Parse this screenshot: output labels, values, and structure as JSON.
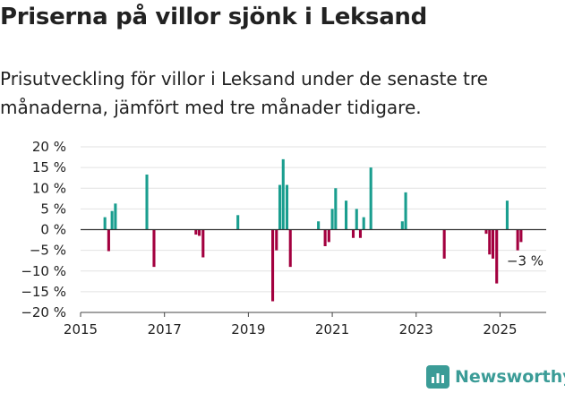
{
  "header": {
    "title": "Priserna på villor sjönk i Leksand",
    "subtitle": "Prisutveckling för villor i Leksand under de senaste tre månaderna, jämfört med tre månader tidigare."
  },
  "colors": {
    "positive": "#1a9e8f",
    "negative": "#a3003f",
    "zero_line": "#333333",
    "grid": "#e2e2e2",
    "brand": "#3b9c97"
  },
  "brand": {
    "name": "Newsworthy",
    "icon": "bar-chart-logo-icon"
  },
  "chart_data": {
    "type": "bar",
    "title": "",
    "xlabel": "",
    "ylabel": "",
    "xlim": [
      2015.0,
      2026.1
    ],
    "ylim": [
      -20,
      20
    ],
    "x_ticks": [
      {
        "value": 2015,
        "label": "2015"
      },
      {
        "value": 2017,
        "label": "2017"
      },
      {
        "value": 2019,
        "label": "2019"
      },
      {
        "value": 2021,
        "label": "2021"
      },
      {
        "value": 2023,
        "label": "2023"
      },
      {
        "value": 2025,
        "label": "2025"
      }
    ],
    "y_ticks": [
      {
        "value": 20,
        "label": "20 %"
      },
      {
        "value": 15,
        "label": "15 %"
      },
      {
        "value": 10,
        "label": "10 %"
      },
      {
        "value": 5,
        "label": "5 %"
      },
      {
        "value": 0,
        "label": "0 %"
      },
      {
        "value": -5,
        "label": "−5 %"
      },
      {
        "value": -10,
        "label": "−10 %"
      },
      {
        "value": -15,
        "label": "−15 %"
      },
      {
        "value": -20,
        "label": "−20 %"
      }
    ],
    "grid": true,
    "bar_width_years": 0.066,
    "points": [
      {
        "x": 2015.58,
        "y": 3.0
      },
      {
        "x": 2015.67,
        "y": -5.2
      },
      {
        "x": 2015.75,
        "y": 4.5
      },
      {
        "x": 2015.83,
        "y": 6.3
      },
      {
        "x": 2016.58,
        "y": 13.3
      },
      {
        "x": 2016.75,
        "y": -9.0
      },
      {
        "x": 2017.75,
        "y": -1.2
      },
      {
        "x": 2017.83,
        "y": -1.5
      },
      {
        "x": 2017.92,
        "y": -6.7
      },
      {
        "x": 2018.75,
        "y": 3.5
      },
      {
        "x": 2019.58,
        "y": -17.3
      },
      {
        "x": 2019.67,
        "y": -5.0
      },
      {
        "x": 2019.75,
        "y": 10.8
      },
      {
        "x": 2019.83,
        "y": 17.0
      },
      {
        "x": 2019.92,
        "y": 10.8
      },
      {
        "x": 2020.0,
        "y": -9.0
      },
      {
        "x": 2020.67,
        "y": 2.0
      },
      {
        "x": 2020.83,
        "y": -4.0
      },
      {
        "x": 2020.92,
        "y": -3.0
      },
      {
        "x": 2021.0,
        "y": 5.0
      },
      {
        "x": 2021.08,
        "y": 10.0
      },
      {
        "x": 2021.33,
        "y": 7.0
      },
      {
        "x": 2021.5,
        "y": -2.0
      },
      {
        "x": 2021.58,
        "y": 5.0
      },
      {
        "x": 2021.67,
        "y": -2.0
      },
      {
        "x": 2021.75,
        "y": 3.0
      },
      {
        "x": 2021.92,
        "y": 15.0
      },
      {
        "x": 2022.67,
        "y": 2.0
      },
      {
        "x": 2022.75,
        "y": 9.0
      },
      {
        "x": 2023.67,
        "y": -7.0
      },
      {
        "x": 2024.67,
        "y": -1.0
      },
      {
        "x": 2024.75,
        "y": -6.0
      },
      {
        "x": 2024.83,
        "y": -7.0
      },
      {
        "x": 2024.92,
        "y": -13.0
      },
      {
        "x": 2025.17,
        "y": 7.0
      },
      {
        "x": 2025.42,
        "y": -5.0
      },
      {
        "x": 2025.5,
        "y": -3.0
      }
    ],
    "annotation": {
      "x": 2025.5,
      "y": -3.0,
      "label": "−3 %"
    }
  }
}
